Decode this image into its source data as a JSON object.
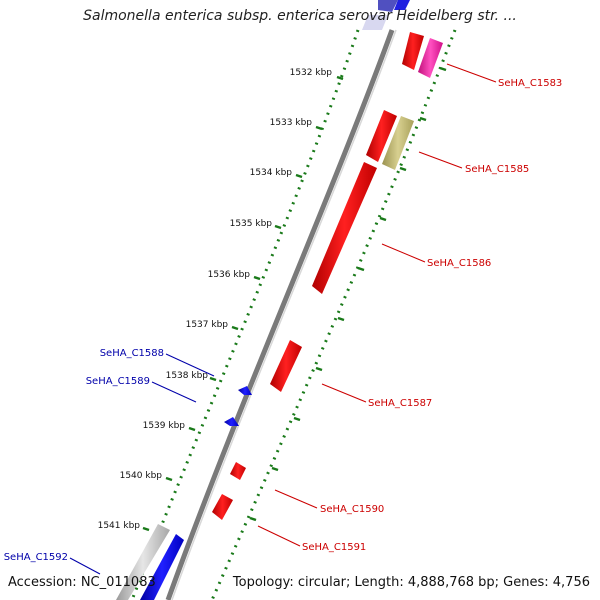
{
  "title": "Salmonella enterica subsp. enterica serovar Heidelberg str. ...",
  "footer": {
    "accession": "Accession: NC_011083",
    "summary": "Topology: circular; Length: 4,888,768 bp; Genes: 4,756"
  },
  "ticks": [
    {
      "label": "1532 kbp"
    },
    {
      "label": "1533 kbp"
    },
    {
      "label": "1534 kbp"
    },
    {
      "label": "1535 kbp"
    },
    {
      "label": "1536 kbp"
    },
    {
      "label": "1537 kbp"
    },
    {
      "label": "1538 kbp"
    },
    {
      "label": "1539 kbp"
    },
    {
      "label": "1540 kbp"
    },
    {
      "label": "1541 kbp"
    }
  ],
  "genes": [
    {
      "name": "SeHA_C1583",
      "color": "#cc0000"
    },
    {
      "name": "SeHA_C1585",
      "color": "#cc0000"
    },
    {
      "name": "SeHA_C1586",
      "color": "#cc0000"
    },
    {
      "name": "SeHA_C1587",
      "color": "#cc0000"
    },
    {
      "name": "SeHA_C1588",
      "color": "#0000aa"
    },
    {
      "name": "SeHA_C1589",
      "color": "#0000aa"
    },
    {
      "name": "SeHA_C1590",
      "color": "#cc0000"
    },
    {
      "name": "SeHA_C1591",
      "color": "#cc0000"
    },
    {
      "name": "SeHA_C1592",
      "color": "#0000aa"
    }
  ],
  "colors": {
    "forward_gene": "#ff0000",
    "reverse_gene": "#0000ff",
    "pseudo_gene": "#c8c07a",
    "magenta_gene": "#ff2fa8",
    "grey_gene": "#c8c8c8",
    "backbone": "#808080",
    "tick_dots": "#1a7a1a"
  }
}
